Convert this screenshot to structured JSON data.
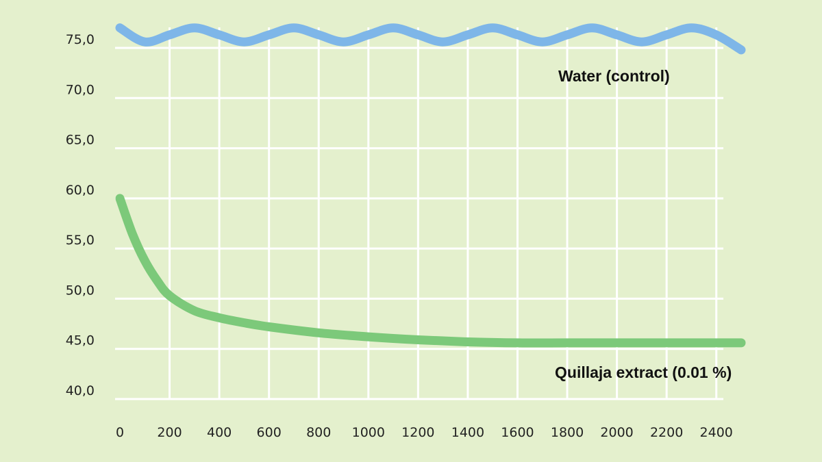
{
  "chart_data": {
    "type": "line",
    "title": "",
    "xlabel": "",
    "ylabel": "",
    "xlim": [
      0,
      2500
    ],
    "ylim": [
      40,
      77.5
    ],
    "grid": true,
    "x_ticks": [
      0,
      200,
      400,
      600,
      800,
      1000,
      1200,
      1400,
      1600,
      1800,
      2000,
      2200,
      2400
    ],
    "y_ticks": [
      40,
      45,
      50,
      55,
      60,
      65,
      70,
      75
    ],
    "y_tick_labels": [
      "40,0",
      "45,0",
      "50,0",
      "55,0",
      "60,0",
      "65,0",
      "70,0",
      "75,0"
    ],
    "background_color": "#e4f0cd",
    "grid_color": "#ffffff",
    "series": [
      {
        "name": "Water (control)",
        "color": "#7eb6e8",
        "x": [
          0,
          100,
          200,
          300,
          400,
          500,
          600,
          700,
          800,
          900,
          1000,
          1100,
          1200,
          1300,
          1400,
          1500,
          1600,
          1700,
          1800,
          1900,
          2000,
          2100,
          2200,
          2300,
          2400,
          2500
        ],
        "y": [
          77.0,
          75.6,
          76.3,
          77.0,
          76.3,
          75.6,
          76.3,
          77.0,
          76.3,
          75.6,
          76.3,
          77.0,
          76.3,
          75.6,
          76.3,
          77.0,
          76.3,
          75.6,
          76.3,
          77.0,
          76.3,
          75.6,
          76.3,
          77.0,
          76.3,
          74.8
        ]
      },
      {
        "name": "Quillaja extract (0.01 %)",
        "color": "#7cc97a",
        "x": [
          0,
          50,
          100,
          150,
          200,
          300,
          400,
          500,
          600,
          800,
          1000,
          1200,
          1400,
          1600,
          1800,
          2000,
          2200,
          2400,
          2500
        ],
        "y": [
          60.0,
          56.5,
          53.8,
          51.8,
          50.3,
          48.8,
          48.1,
          47.6,
          47.2,
          46.6,
          46.2,
          45.9,
          45.7,
          45.6,
          45.6,
          45.6,
          45.6,
          45.6,
          45.6
        ]
      }
    ]
  }
}
